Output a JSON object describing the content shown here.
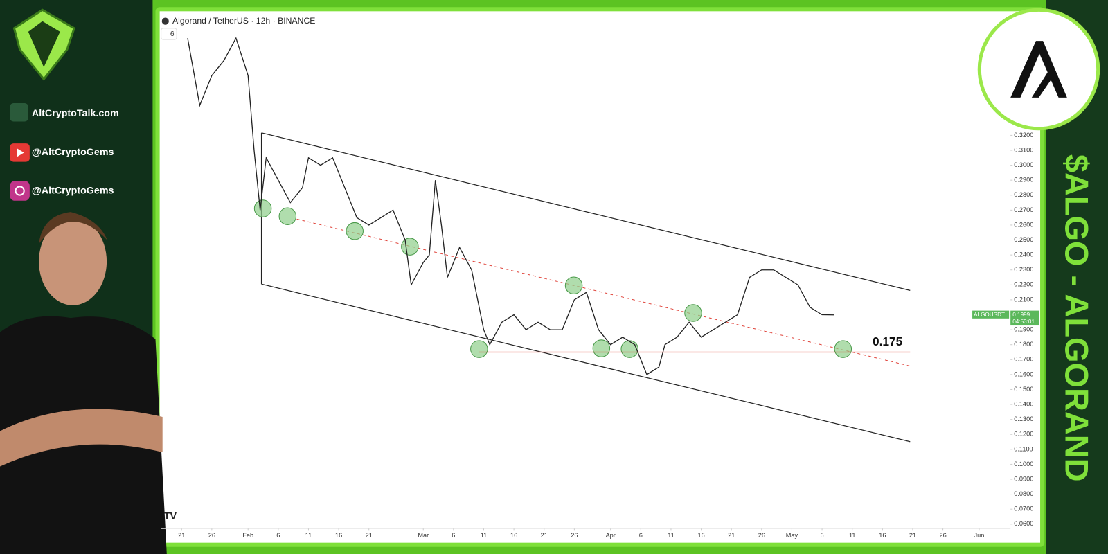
{
  "header": {
    "site": "AltCryptoTalk.com",
    "youtube": "@AltCryptoGems",
    "instagram": "@AltCryptoGems",
    "banner": "$ALGO - ALGORAND"
  },
  "chart_data": {
    "type": "line",
    "title": "Algorand / TetherUS · 12h · BINANCE",
    "indicator_count": "6",
    "symbol": "ALGOUSDT",
    "last_price": {
      "value": 0.1999,
      "label": "0.1999"
    },
    "countdown": "04:53:01",
    "annotation": {
      "value": 0.175,
      "label": "0.175",
      "color": "#e0453c"
    },
    "xlim": [
      "01-17",
      "06-06"
    ],
    "xticks": [
      {
        "value": "01-21",
        "label": "21"
      },
      {
        "value": "01-26",
        "label": "26"
      },
      {
        "value": "02-01",
        "label": "Feb"
      },
      {
        "value": "02-06",
        "label": "6"
      },
      {
        "value": "02-11",
        "label": "11"
      },
      {
        "value": "02-16",
        "label": "16"
      },
      {
        "value": "02-21",
        "label": "21"
      },
      {
        "value": "03-01",
        "label": "Mar"
      },
      {
        "value": "03-06",
        "label": "6"
      },
      {
        "value": "03-11",
        "label": "11"
      },
      {
        "value": "03-16",
        "label": "16"
      },
      {
        "value": "03-21",
        "label": "21"
      },
      {
        "value": "03-26",
        "label": "26"
      },
      {
        "value": "04-01",
        "label": "Apr"
      },
      {
        "value": "04-06",
        "label": "6"
      },
      {
        "value": "04-11",
        "label": "11"
      },
      {
        "value": "04-16",
        "label": "16"
      },
      {
        "value": "04-21",
        "label": "21"
      },
      {
        "value": "04-26",
        "label": "26"
      },
      {
        "value": "05-01",
        "label": "May"
      },
      {
        "value": "05-06",
        "label": "6"
      },
      {
        "value": "05-11",
        "label": "11"
      },
      {
        "value": "05-16",
        "label": "16"
      },
      {
        "value": "05-21",
        "label": "21"
      },
      {
        "value": "05-26",
        "label": "26"
      },
      {
        "value": "06-01",
        "label": "Jun"
      }
    ],
    "ylim": [
      0.057,
      0.402
    ],
    "yticks": [
      {
        "value": 0.06,
        "label": "0.0600"
      },
      {
        "value": 0.07,
        "label": "0.0700"
      },
      {
        "value": 0.08,
        "label": "0.0800"
      },
      {
        "value": 0.09,
        "label": "0.0900"
      },
      {
        "value": 0.1,
        "label": "0.1000"
      },
      {
        "value": 0.11,
        "label": "0.1100"
      },
      {
        "value": 0.12,
        "label": "0.1200"
      },
      {
        "value": 0.13,
        "label": "0.1300"
      },
      {
        "value": 0.14,
        "label": "0.1400"
      },
      {
        "value": 0.15,
        "label": "0.1500"
      },
      {
        "value": 0.16,
        "label": "0.1600"
      },
      {
        "value": 0.17,
        "label": "0.1700"
      },
      {
        "value": 0.18,
        "label": "0.1800"
      },
      {
        "value": 0.19,
        "label": "0.1900"
      },
      {
        "value": 0.2,
        "label": "0.2000"
      },
      {
        "value": 0.21,
        "label": "0.2100"
      },
      {
        "value": 0.22,
        "label": "0.2200"
      },
      {
        "value": 0.23,
        "label": "0.2300"
      },
      {
        "value": 0.24,
        "label": "0.2400"
      },
      {
        "value": 0.25,
        "label": "0.2500"
      },
      {
        "value": 0.26,
        "label": "0.2600"
      },
      {
        "value": 0.27,
        "label": "0.2700"
      },
      {
        "value": 0.28,
        "label": "0.2800"
      },
      {
        "value": 0.29,
        "label": "0.2900"
      },
      {
        "value": 0.3,
        "label": "0.3000"
      },
      {
        "value": 0.31,
        "label": "0.3100"
      },
      {
        "value": 0.32,
        "label": "0.3200"
      }
    ],
    "series": [
      {
        "name": "ALGOUSDT",
        "color": "#222222",
        "x": [
          "01-22",
          "01-24",
          "01-26",
          "01-28",
          "01-30",
          "02-01",
          "02-02",
          "02-03",
          "02-04",
          "02-06",
          "02-08",
          "02-10",
          "02-11",
          "02-13",
          "02-15",
          "02-17",
          "02-19",
          "02-21",
          "02-23",
          "02-25",
          "02-27",
          "02-28",
          "03-01",
          "03-02",
          "03-03",
          "03-04",
          "03-05",
          "03-07",
          "03-09",
          "03-11",
          "03-12",
          "03-14",
          "03-16",
          "03-18",
          "03-20",
          "03-22",
          "03-24",
          "03-26",
          "03-28",
          "03-30",
          "04-01",
          "04-03",
          "04-05",
          "04-07",
          "04-09",
          "04-10",
          "04-12",
          "04-14",
          "04-16",
          "04-18",
          "04-20",
          "04-22",
          "04-24",
          "04-26",
          "04-28",
          "04-30",
          "05-02",
          "05-04",
          "05-06",
          "05-08"
        ],
        "values": [
          0.385,
          0.34,
          0.36,
          0.37,
          0.385,
          0.36,
          0.31,
          0.27,
          0.305,
          0.29,
          0.275,
          0.285,
          0.305,
          0.3,
          0.305,
          0.285,
          0.265,
          0.26,
          0.265,
          0.27,
          0.25,
          0.22,
          0.235,
          0.24,
          0.29,
          0.26,
          0.225,
          0.245,
          0.23,
          0.19,
          0.18,
          0.195,
          0.2,
          0.19,
          0.195,
          0.19,
          0.19,
          0.21,
          0.215,
          0.19,
          0.18,
          0.185,
          0.18,
          0.16,
          0.165,
          0.18,
          0.185,
          0.195,
          0.185,
          0.19,
          0.195,
          0.2,
          0.225,
          0.23,
          0.23,
          0.225,
          0.22,
          0.205,
          0.2,
          0.1999
        ]
      }
    ]
  }
}
